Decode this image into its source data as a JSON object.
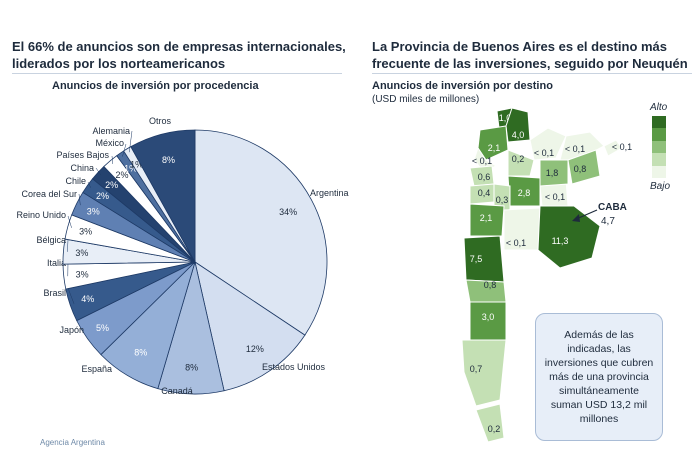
{
  "left_panel": {
    "title": "El 66% de anuncios son de empresas internacionales, liderados por los norteamericanos",
    "chart_title": "Anuncios de inversión por procedencia"
  },
  "right_panel": {
    "title": "La Provincia de Buenos Aires es el destino más frecuente de las inversiones, seguido por Neuquén",
    "chart_title": "Anuncios de inversión por destino",
    "unit": "(USD miles de millones)",
    "legend_high": "Alto",
    "legend_low": "Bajo",
    "caba_name": "CABA",
    "caba_value": "4,7",
    "note": "Además de las indicadas, las inversiones que cubren más de una provincia simultáneamente suman USD 13,2 mil millones"
  },
  "footer": "Agencia Argentina",
  "chart_data": [
    {
      "type": "pie",
      "title": "Anuncios de inversión por procedencia",
      "slices": [
        {
          "label": "Argentina",
          "value": 34,
          "color": "#dde6f3"
        },
        {
          "label": "Estados Unidos",
          "value": 12,
          "color": "#d3def0"
        },
        {
          "label": "Canadá",
          "value": 8,
          "color": "#aabfdf"
        },
        {
          "label": "España",
          "value": 8,
          "color": "#94afd7"
        },
        {
          "label": "Japón",
          "value": 5,
          "color": "#7d9bcb"
        },
        {
          "label": "Brasil",
          "value": 4,
          "color": "#365a8c"
        },
        {
          "label": "Italia",
          "value": 3,
          "color": "#ffffff"
        },
        {
          "label": "Bélgica",
          "value": 3,
          "color": "#e8eef7"
        },
        {
          "label": "Reino Unido",
          "value": 3,
          "color": "#ffffff"
        },
        {
          "label": "Corea del Sur",
          "value": 3,
          "color": "#5f80b3"
        },
        {
          "label": "Chile",
          "value": 2,
          "color": "#365a8c"
        },
        {
          "label": "China",
          "value": 2,
          "color": "#24426f"
        },
        {
          "label": "Países Bajos",
          "value": 2,
          "color": "#ffffff"
        },
        {
          "label": "México",
          "value": 1,
          "color": "#4e6f9f"
        },
        {
          "label": "Alemania",
          "value": 1,
          "color": "#e8eef7"
        },
        {
          "label": "Otros",
          "value": 8,
          "color": "#2b4a78"
        }
      ],
      "pct_labels": [
        "34%",
        "12%",
        "8%",
        "8%",
        "5%",
        "4%",
        "3%",
        "3%",
        "3%",
        "3%",
        "2%",
        "2%",
        "2%",
        "1%",
        "1%",
        "8%"
      ]
    },
    {
      "type": "map",
      "title": "Anuncios de inversión por destino",
      "regions": [
        {
          "value": "1,0",
          "level": 4
        },
        {
          "value": "4,0",
          "level": 4
        },
        {
          "value": "2,1",
          "level": 3
        },
        {
          "value": "< 0,1",
          "level": 0
        },
        {
          "value": "< 0,1",
          "level": 0
        },
        {
          "value": "< 0,1",
          "level": 0
        },
        {
          "value": "< 0,1",
          "level": 0
        },
        {
          "value": "< 0,1",
          "level": 0
        },
        {
          "value": "0,2",
          "level": 1
        },
        {
          "value": "0,6",
          "level": 1
        },
        {
          "value": "0,4",
          "level": 1
        },
        {
          "value": "2,8",
          "level": 3
        },
        {
          "value": "0,3",
          "level": 1
        },
        {
          "value": "1,8",
          "level": 2
        },
        {
          "value": "0,8",
          "level": 2
        },
        {
          "value": "2,1",
          "level": 3
        },
        {
          "value": "< 0,1",
          "level": 0
        },
        {
          "value": "11,3",
          "level": 4
        },
        {
          "value": "7,5",
          "level": 4
        },
        {
          "value": "0,8",
          "level": 2
        },
        {
          "value": "3,0",
          "level": 3
        },
        {
          "value": "0,7",
          "level": 1
        },
        {
          "value": "0,2",
          "level": 1
        }
      ]
    }
  ]
}
